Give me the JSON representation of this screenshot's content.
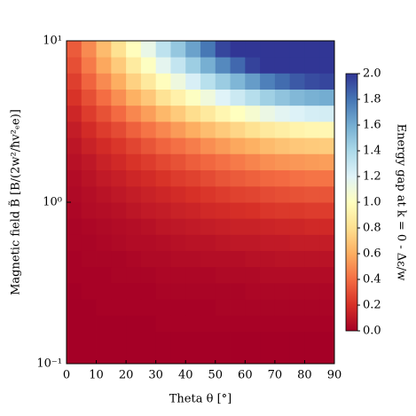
{
  "chart_data": {
    "type": "heatmap",
    "xlabel": "Theta θ [°]",
    "ylabel": "Magnetic field B̃ [B/(2w²/ħv²ₑe)]",
    "colorbar_label": "Energy gap at k = 0 - Δε/w",
    "colormap": [
      "#a50026",
      "#d73027",
      "#f46d43",
      "#fdae61",
      "#fee090",
      "#ffffbf",
      "#e0f3f8",
      "#abd9e9",
      "#74add1",
      "#4575b4",
      "#313695"
    ],
    "x": [
      2.5,
      7.5,
      12.5,
      17.5,
      22.5,
      27.5,
      32.5,
      37.5,
      42.5,
      47.5,
      52.5,
      57.5,
      62.5,
      67.5,
      72.5,
      77.5,
      82.5,
      87.5
    ],
    "y": [
      0.112,
      0.141,
      0.178,
      0.224,
      0.282,
      0.355,
      0.447,
      0.562,
      0.708,
      0.891,
      1.12,
      1.41,
      1.78,
      2.24,
      2.82,
      3.55,
      4.47,
      5.62,
      7.08,
      8.91
    ],
    "z": [
      [
        0,
        0,
        0,
        0,
        0,
        0,
        0,
        0,
        0,
        0,
        0,
        0,
        0,
        0,
        0,
        0,
        0,
        0
      ],
      [
        0,
        0,
        0,
        0,
        0,
        0,
        0,
        0,
        0,
        0,
        0,
        0,
        0,
        0,
        0,
        0,
        0,
        0
      ],
      [
        0,
        0,
        0,
        0,
        0,
        0,
        0.01,
        0.01,
        0.01,
        0.01,
        0.01,
        0.01,
        0.01,
        0.01,
        0.01,
        0.01,
        0.01,
        0.01
      ],
      [
        0,
        0,
        0.01,
        0.01,
        0.01,
        0.01,
        0.01,
        0.01,
        0.01,
        0.01,
        0.02,
        0.02,
        0.02,
        0.02,
        0.02,
        0.02,
        0.02,
        0.02
      ],
      [
        0,
        0.01,
        0.01,
        0.01,
        0.01,
        0.01,
        0.02,
        0.02,
        0.02,
        0.02,
        0.02,
        0.02,
        0.03,
        0.03,
        0.03,
        0.03,
        0.03,
        0.03
      ],
      [
        0.01,
        0.01,
        0.01,
        0.02,
        0.02,
        0.02,
        0.03,
        0.03,
        0.03,
        0.03,
        0.04,
        0.04,
        0.04,
        0.05,
        0.05,
        0.05,
        0.05,
        0.05
      ],
      [
        0.01,
        0.02,
        0.02,
        0.02,
        0.03,
        0.04,
        0.04,
        0.05,
        0.05,
        0.06,
        0.06,
        0.06,
        0.07,
        0.07,
        0.08,
        0.08,
        0.08,
        0.08
      ],
      [
        0.02,
        0.02,
        0.03,
        0.04,
        0.05,
        0.05,
        0.06,
        0.07,
        0.08,
        0.08,
        0.09,
        0.1,
        0.1,
        0.11,
        0.11,
        0.12,
        0.12,
        0.12
      ],
      [
        0.02,
        0.03,
        0.04,
        0.05,
        0.06,
        0.07,
        0.09,
        0.1,
        0.11,
        0.12,
        0.13,
        0.14,
        0.14,
        0.15,
        0.16,
        0.16,
        0.17,
        0.17
      ],
      [
        0.03,
        0.05,
        0.06,
        0.07,
        0.09,
        0.11,
        0.12,
        0.14,
        0.15,
        0.17,
        0.18,
        0.19,
        0.2,
        0.22,
        0.23,
        0.23,
        0.24,
        0.24
      ],
      [
        0.04,
        0.06,
        0.08,
        0.1,
        0.12,
        0.14,
        0.16,
        0.18,
        0.2,
        0.22,
        0.24,
        0.26,
        0.27,
        0.29,
        0.3,
        0.31,
        0.32,
        0.32
      ],
      [
        0.05,
        0.08,
        0.11,
        0.13,
        0.16,
        0.18,
        0.21,
        0.24,
        0.26,
        0.29,
        0.32,
        0.34,
        0.36,
        0.38,
        0.39,
        0.41,
        0.42,
        0.42
      ],
      [
        0.07,
        0.1,
        0.14,
        0.17,
        0.21,
        0.24,
        0.28,
        0.31,
        0.35,
        0.38,
        0.41,
        0.44,
        0.47,
        0.5,
        0.52,
        0.53,
        0.54,
        0.55
      ],
      [
        0.09,
        0.14,
        0.18,
        0.22,
        0.27,
        0.32,
        0.37,
        0.41,
        0.45,
        0.5,
        0.54,
        0.58,
        0.61,
        0.65,
        0.68,
        0.7,
        0.71,
        0.72
      ],
      [
        0.12,
        0.18,
        0.24,
        0.29,
        0.36,
        0.42,
        0.48,
        0.54,
        0.6,
        0.66,
        0.71,
        0.76,
        0.81,
        0.86,
        0.89,
        0.92,
        0.94,
        0.95
      ],
      [
        0.16,
        0.24,
        0.31,
        0.39,
        0.48,
        0.55,
        0.64,
        0.71,
        0.79,
        0.86,
        0.94,
        1.0,
        1.06,
        1.13,
        1.18,
        1.21,
        1.24,
        1.25
      ],
      [
        0.21,
        0.3,
        0.4,
        0.5,
        0.61,
        0.7,
        0.82,
        0.91,
        1.01,
        1.1,
        1.2,
        1.28,
        1.36,
        1.44,
        1.5,
        1.55,
        1.58,
        1.6
      ],
      [
        0.25,
        0.37,
        0.49,
        0.6,
        0.74,
        0.86,
        0.99,
        1.11,
        1.23,
        1.35,
        1.46,
        1.56,
        1.66,
        1.76,
        1.83,
        1.89,
        1.93,
        1.95
      ],
      [
        0.3,
        0.44,
        0.58,
        0.71,
        0.87,
        1.01,
        1.17,
        1.31,
        1.45,
        1.59,
        1.73,
        1.84,
        1.96,
        2.0,
        2.0,
        2.0,
        2.0,
        2.0
      ],
      [
        0.34,
        0.49,
        0.65,
        0.81,
        0.99,
        1.14,
        1.33,
        1.48,
        1.64,
        1.79,
        1.95,
        2.0,
        2.0,
        2.0,
        2.0,
        2.0,
        2.0,
        2.0
      ]
    ],
    "xlim": [
      0,
      90
    ],
    "xticks": [
      0,
      10,
      20,
      30,
      40,
      50,
      60,
      70,
      80,
      90
    ],
    "ylim": [
      0.1,
      10
    ],
    "yscale": "log",
    "yticks": [
      {
        "value": 0.1,
        "label": "10⁻¹"
      },
      {
        "value": 1,
        "label": "10⁰"
      },
      {
        "value": 10,
        "label": "10¹"
      }
    ],
    "clim": [
      0,
      2
    ],
    "cticks": [
      {
        "value": 0,
        "label": "0.0"
      },
      0.2,
      0.4,
      0.6,
      0.8,
      {
        "value": 1,
        "label": "1.0"
      },
      1.2,
      1.4,
      1.6,
      1.8,
      {
        "value": 2,
        "label": "2.0"
      }
    ]
  }
}
